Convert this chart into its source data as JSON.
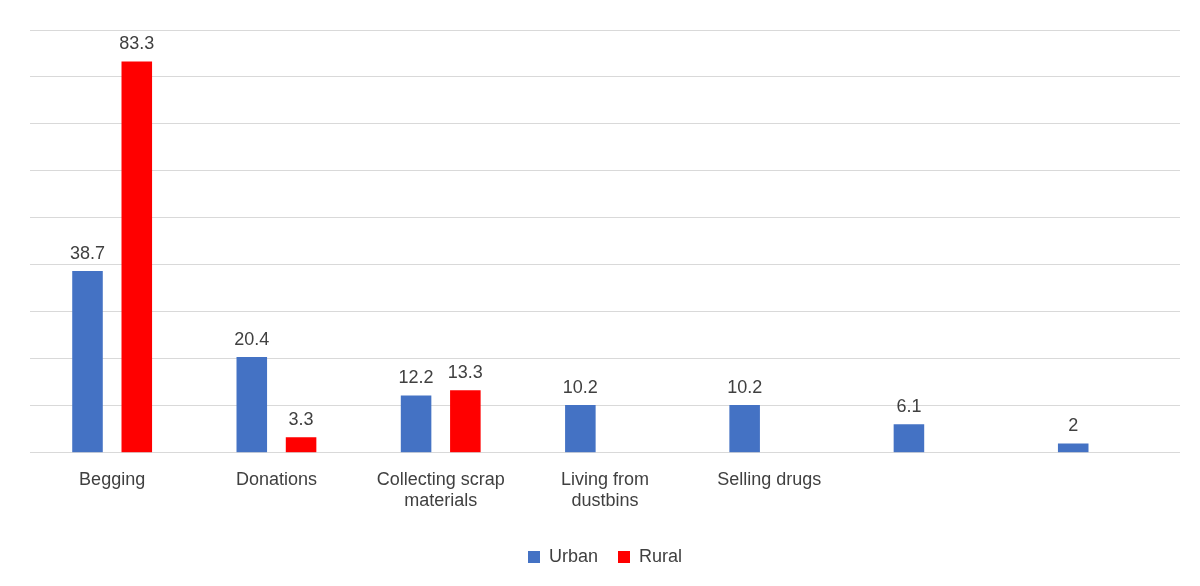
{
  "chart_data": {
    "type": "bar",
    "categories": [
      "Begging",
      "Donations",
      "Collecting scrap materials",
      "Living from dustbins",
      "Selling drugs",
      null,
      null
    ],
    "series": [
      {
        "name": "Urban",
        "color": "#4472c4",
        "values": [
          38.7,
          20.4,
          12.2,
          10.2,
          10.2,
          6.1,
          2
        ]
      },
      {
        "name": "Rural",
        "color": "#ff0000",
        "values": [
          83.3,
          3.3,
          13.3,
          null,
          null,
          null,
          null
        ]
      }
    ],
    "ylim": [
      0,
      90
    ],
    "yticks": [
      {
        "value": 0,
        "label": null
      },
      {
        "value": 10,
        "label": null
      },
      {
        "value": 20,
        "label": null
      },
      {
        "value": 30,
        "label": null
      },
      {
        "value": 40,
        "label": null
      },
      {
        "value": 50,
        "label": null
      },
      {
        "value": 60,
        "label": null
      },
      {
        "value": 70,
        "label": null
      },
      {
        "value": 80,
        "label": null
      },
      {
        "value": 90,
        "label": null
      }
    ],
    "tick_labels": "x",
    "grid": "y",
    "data_labels": true,
    "legend": "bottom"
  }
}
